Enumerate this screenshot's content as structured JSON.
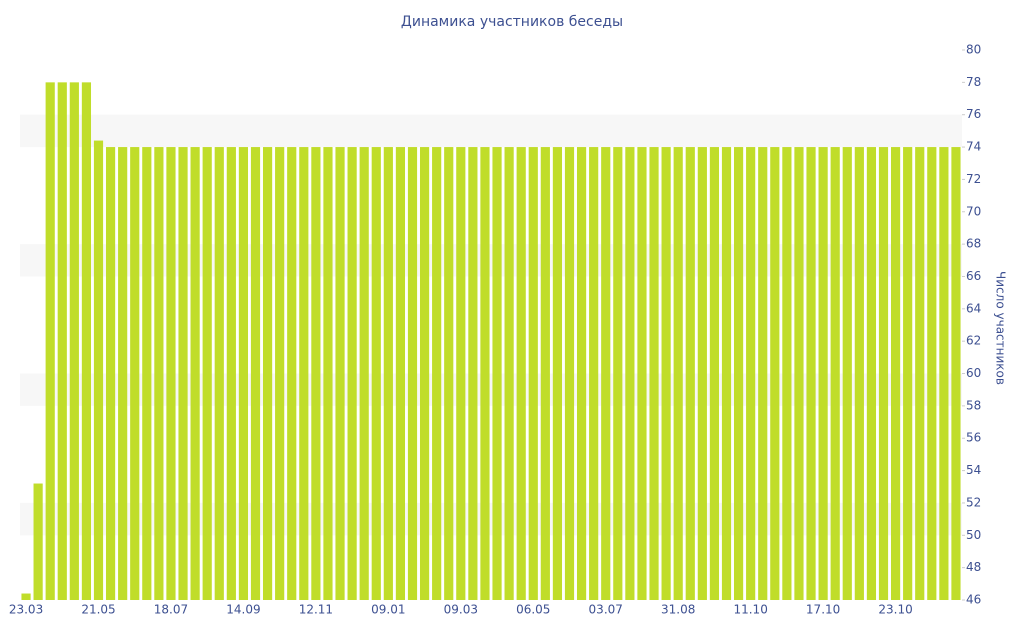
{
  "chart_data": {
    "type": "bar",
    "title": "Динамика участников беседы",
    "y_label": "Число участников",
    "categories": [
      "23.03",
      null,
      null,
      null,
      null,
      null,
      "21.05",
      null,
      null,
      null,
      null,
      null,
      "18.07",
      null,
      null,
      null,
      null,
      null,
      "14.09",
      null,
      null,
      null,
      null,
      null,
      "12.11",
      null,
      null,
      null,
      null,
      null,
      "09.01",
      null,
      null,
      null,
      null,
      null,
      "09.03",
      null,
      null,
      null,
      null,
      null,
      "06.05",
      null,
      null,
      null,
      null,
      null,
      "03.07",
      null,
      null,
      null,
      null,
      null,
      "31.08",
      null,
      null,
      null,
      null,
      null,
      "11.10",
      null,
      null,
      null,
      null,
      null,
      "17.10",
      null,
      null,
      null,
      null,
      null,
      "23.10",
      null,
      null,
      null,
      null,
      null
    ],
    "values": [
      46.4,
      53.2,
      78,
      78,
      78,
      78,
      74.4,
      74,
      74,
      74,
      74,
      74,
      74,
      74,
      74,
      74,
      74,
      74,
      74,
      74,
      74,
      74,
      74,
      74,
      74,
      74,
      74,
      74,
      74,
      74,
      74,
      74,
      74,
      74,
      74,
      74,
      74,
      74,
      74,
      74,
      74,
      74,
      74,
      74,
      74,
      74,
      74,
      74,
      74,
      74,
      74,
      74,
      74,
      74,
      74,
      74,
      74,
      74,
      74,
      74,
      74,
      74,
      74,
      74,
      74,
      74,
      74,
      74,
      74,
      74,
      74,
      74,
      74,
      74,
      74,
      74,
      74,
      74
    ],
    "color": "#c0dd2a",
    "ylim": [
      46,
      80
    ],
    "yticks": [
      46,
      48,
      50,
      52,
      54,
      56,
      58,
      60,
      62,
      64,
      66,
      68,
      70,
      72,
      74,
      76,
      78,
      80
    ],
    "y_axis_side": "right",
    "banded_background": true
  }
}
